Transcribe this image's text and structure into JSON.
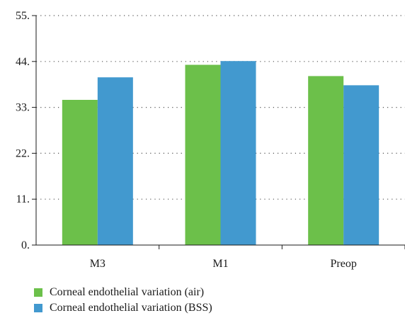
{
  "chart_data": {
    "type": "bar",
    "categories": [
      "M3",
      "M1",
      "Preop"
    ],
    "series": [
      {
        "name": "Corneal endothelial variation (air)",
        "values": [
          34.8,
          43.2,
          40.5
        ],
        "color": "#6cc04a"
      },
      {
        "name": "Corneal endothelial variation (BSS)",
        "values": [
          40.2,
          44.1,
          38.3
        ],
        "color": "#4299cf"
      }
    ],
    "yticks": [
      "0.",
      "11.",
      "22.",
      "33.",
      "44.",
      "55."
    ],
    "ylim": [
      0,
      55
    ],
    "grid": true,
    "legend_position": "bottom-left",
    "title": "",
    "xlabel": "",
    "ylabel": ""
  }
}
